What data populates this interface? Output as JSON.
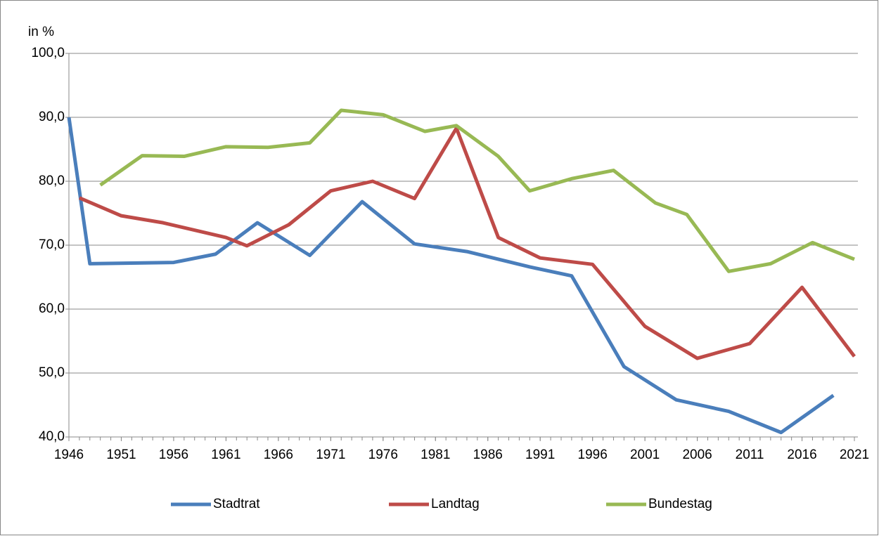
{
  "chart_data": {
    "type": "line",
    "y_label": "in %",
    "xlim": [
      1946,
      2021
    ],
    "xticks": [
      1946,
      1951,
      1956,
      1961,
      1966,
      1971,
      1976,
      1981,
      1986,
      1991,
      1996,
      2001,
      2006,
      2011,
      2016,
      2021
    ],
    "ylim": [
      40,
      100
    ],
    "yticks": [
      {
        "value": 40,
        "label": "40,0"
      },
      {
        "value": 50,
        "label": "50,0"
      },
      {
        "value": 60,
        "label": "60,0"
      },
      {
        "value": 70,
        "label": "70,0"
      },
      {
        "value": 80,
        "label": "80,0"
      },
      {
        "value": 90,
        "label": "90,0"
      },
      {
        "value": 100,
        "label": "100,0"
      }
    ],
    "grid": true,
    "legend": "bottom",
    "series": [
      {
        "name": "Stadtrat",
        "color": "#4a7ebb",
        "x": [
          1946,
          1948,
          1956,
          1960,
          1964,
          1969,
          1974,
          1979,
          1984,
          1990,
          1994,
          1999,
          2004,
          2009,
          2014,
          2019
        ],
        "values": [
          90.0,
          67.1,
          67.3,
          68.6,
          73.5,
          68.4,
          76.8,
          70.2,
          69.0,
          66.6,
          65.2,
          51.0,
          45.8,
          44.0,
          40.7,
          46.5
        ]
      },
      {
        "name": "Landtag",
        "color": "#be4b48",
        "x": [
          1947,
          1951,
          1955,
          1961,
          1963,
          1967,
          1971,
          1975,
          1979,
          1983,
          1987,
          1991,
          1996,
          2001,
          2006,
          2011,
          2016,
          2021
        ],
        "values": [
          77.4,
          74.6,
          73.5,
          71.2,
          69.9,
          73.2,
          78.5,
          80.0,
          77.3,
          88.3,
          71.2,
          68.0,
          67.0,
          57.3,
          52.3,
          54.6,
          63.4,
          52.6
        ]
      },
      {
        "name": "Bundestag",
        "color": "#98b954",
        "x": [
          1949,
          1953,
          1957,
          1961,
          1965,
          1969,
          1972,
          1976,
          1980,
          1983,
          1987,
          1990,
          1994,
          1998,
          2002,
          2005,
          2009,
          2013,
          2017,
          2021
        ],
        "values": [
          79.4,
          84.0,
          83.9,
          85.4,
          85.3,
          86.0,
          91.1,
          90.4,
          87.8,
          88.7,
          83.9,
          78.5,
          80.4,
          81.7,
          76.6,
          74.8,
          65.9,
          67.1,
          70.4,
          67.8
        ]
      }
    ]
  }
}
